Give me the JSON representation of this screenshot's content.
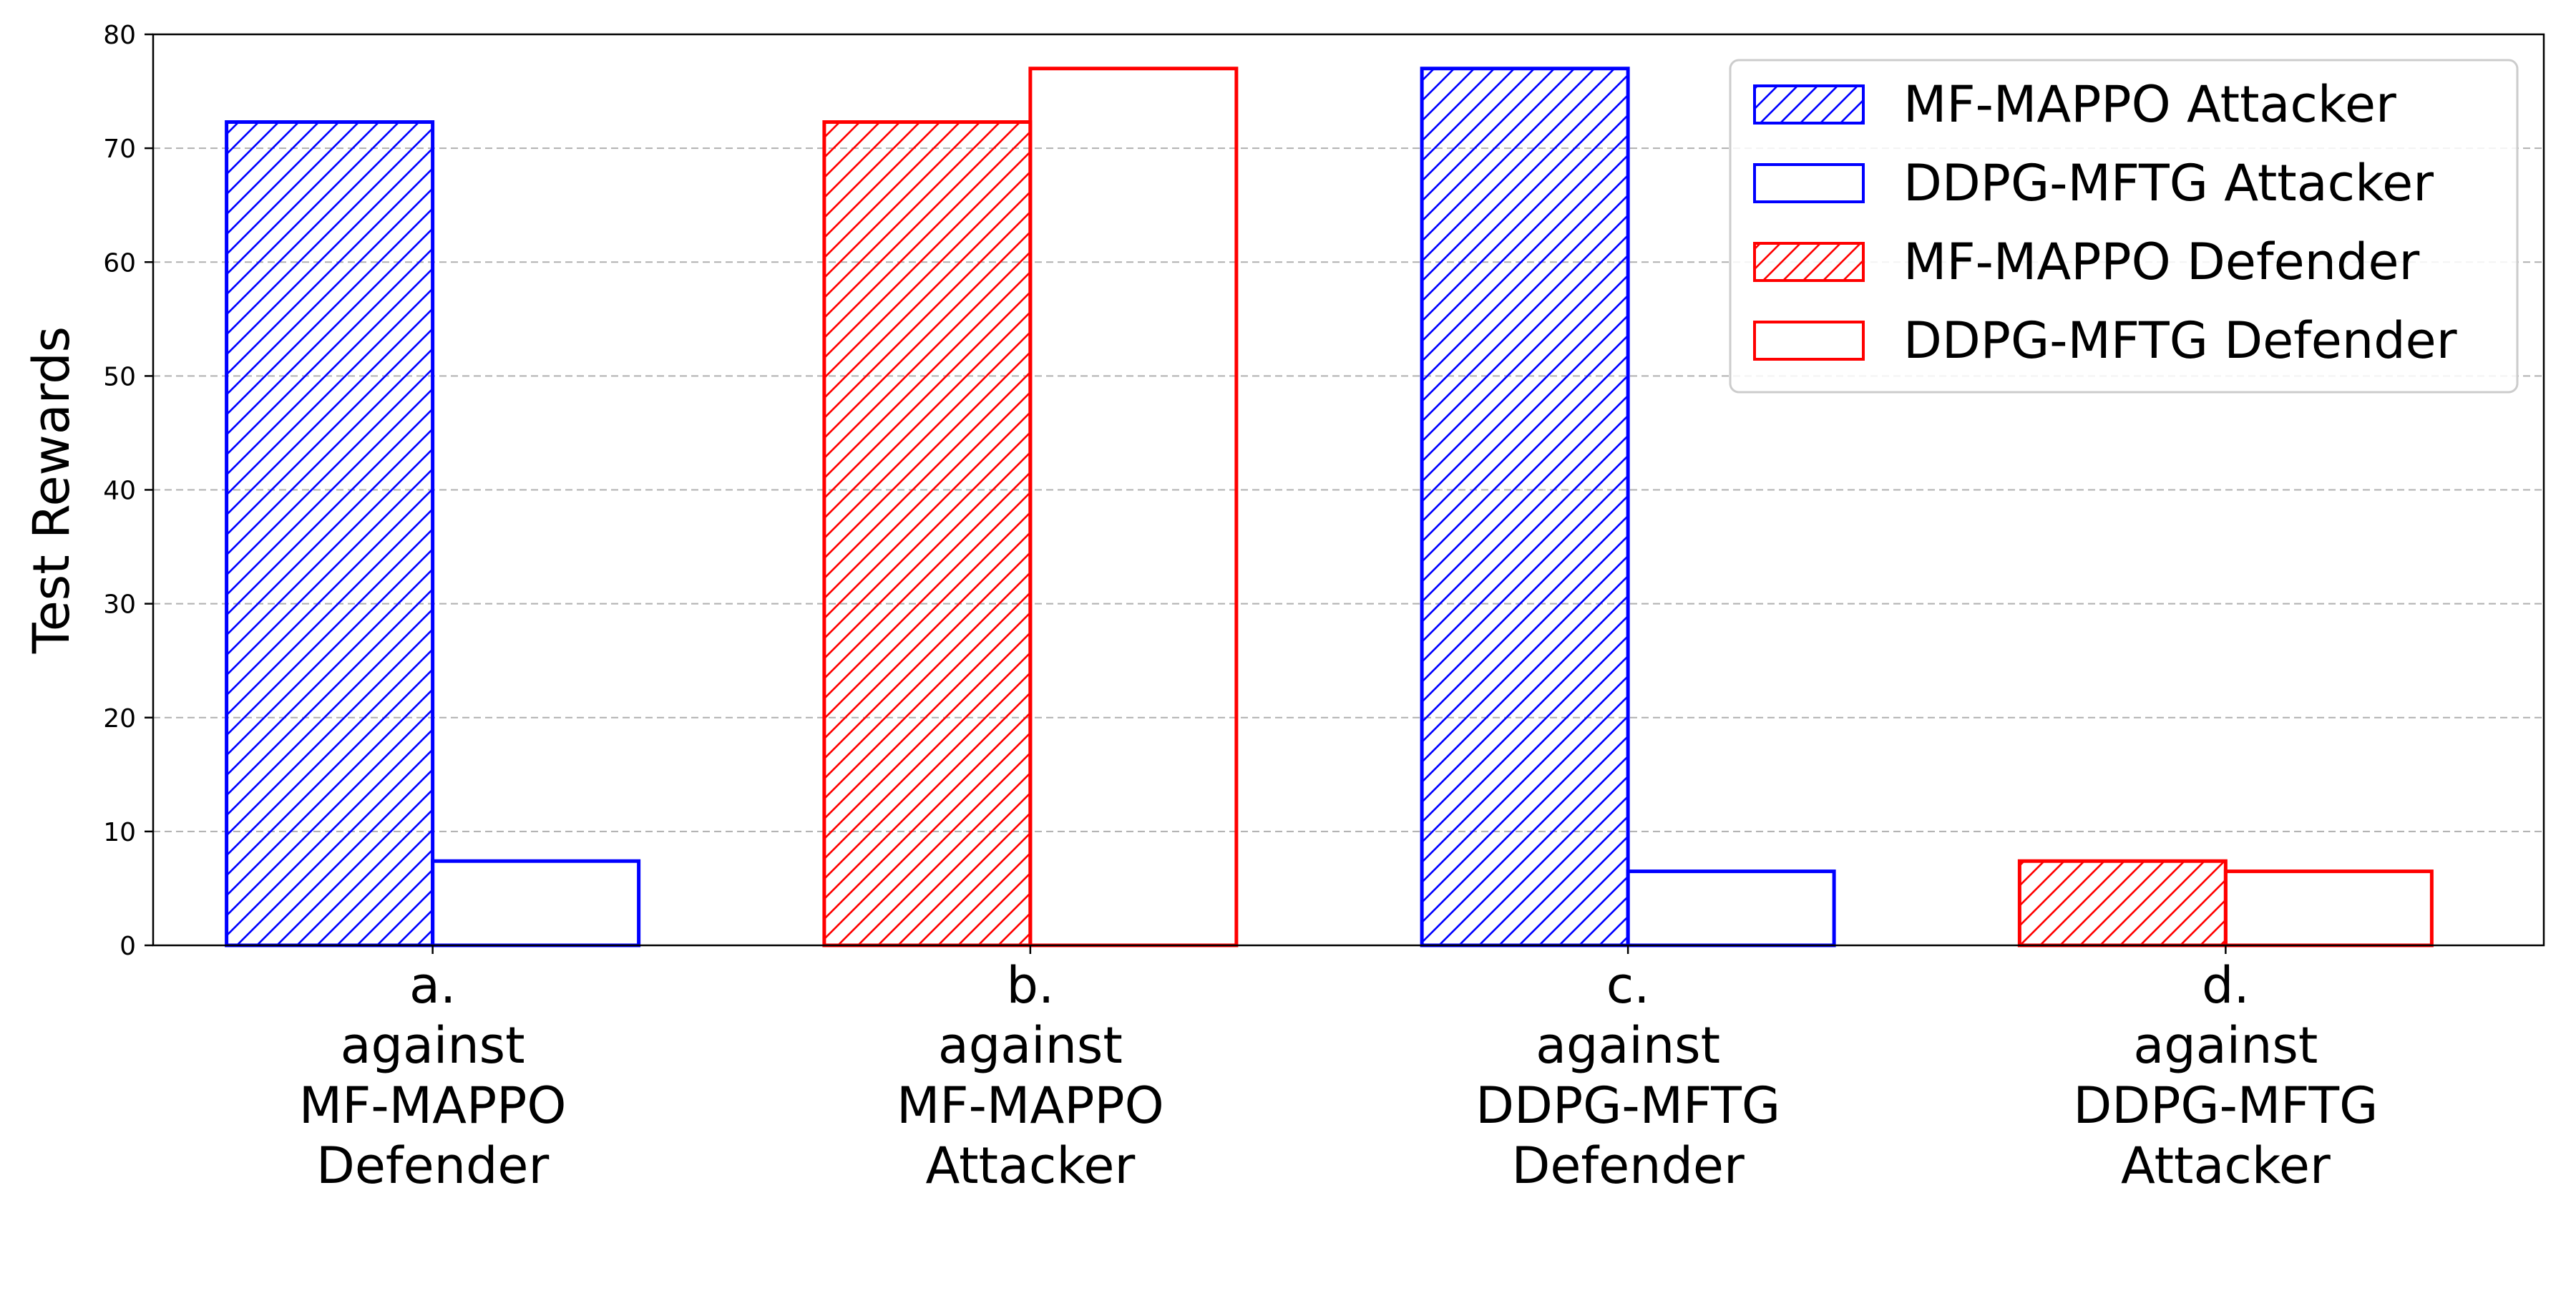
{
  "chart_data": {
    "type": "bar",
    "title": "",
    "xlabel": "",
    "ylabel": "Test Rewards",
    "ylim": [
      0,
      80
    ],
    "yticks": [
      0,
      10,
      20,
      30,
      40,
      50,
      60,
      70,
      80
    ],
    "grid": true,
    "legend_position": "top-right",
    "categories": [
      [
        "a.",
        "against",
        "MF-MAPPO",
        "Defender"
      ],
      [
        "b.",
        "against",
        "MF-MAPPO",
        "Attacker"
      ],
      [
        "c.",
        "against",
        "DDPG-MFTG",
        "Defender"
      ],
      [
        "d.",
        "against",
        "DDPG-MFTG",
        "Attacker"
      ]
    ],
    "series": [
      {
        "name": "MF-MAPPO Attacker",
        "color": "#0000ff",
        "hatched": true,
        "values": [
          72.3,
          null,
          77.0,
          null
        ]
      },
      {
        "name": "DDPG-MFTG Attacker",
        "color": "#0000ff",
        "hatched": false,
        "values": [
          7.4,
          null,
          6.5,
          null
        ]
      },
      {
        "name": "MF-MAPPO Defender",
        "color": "#ff0000",
        "hatched": true,
        "values": [
          null,
          72.3,
          null,
          7.4
        ]
      },
      {
        "name": "DDPG-MFTG Defender",
        "color": "#ff0000",
        "hatched": false,
        "values": [
          null,
          77.0,
          null,
          6.5
        ]
      }
    ]
  }
}
